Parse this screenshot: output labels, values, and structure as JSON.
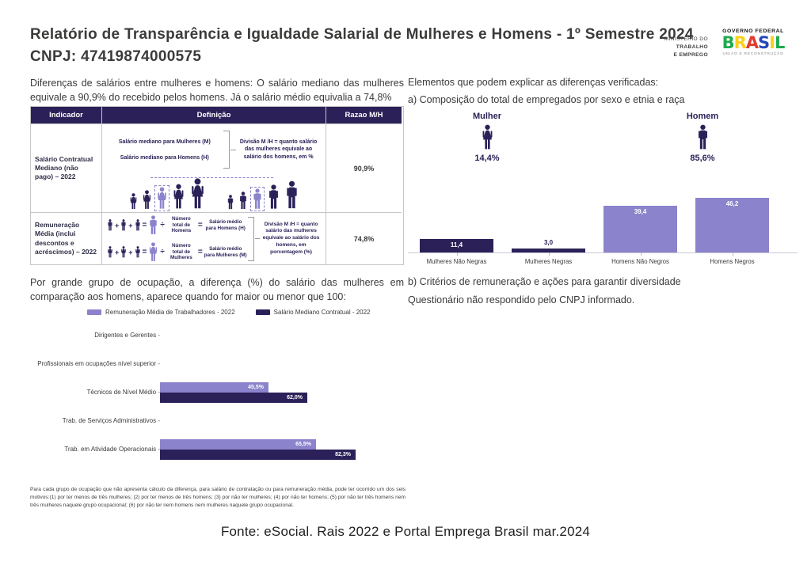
{
  "header": {
    "title": "Relatório de Transparência e Igualdade Salarial de Mulheres e Homens - 1º Semestre 2024",
    "cnpj": "CNPJ: 47419874000575",
    "ministry": {
      "line1": "MINISTÉRIO DO",
      "line2": "TRABALHO",
      "line3": "E EMPREGO"
    },
    "gov": {
      "top": "GOVERNO FEDERAL",
      "brand": "BRASIL",
      "brand_colors": [
        "#1faa4d",
        "#fcd116",
        "#e23b2e",
        "#2747b8",
        "#fcd116",
        "#1faa4d"
      ],
      "bottom": "UNIÃO E RECONSTRUÇÃO"
    }
  },
  "colors": {
    "dark": "#2b2158",
    "light": "#8b83cb"
  },
  "symbols": {
    "plus": "+",
    "equals": "=",
    "divide": "÷"
  },
  "left": {
    "intro": "Diferenças de salários entre mulheres e homens: O salário mediano das mulheres equivale a 90,9% do recebido pelos homens. Já o salário médio equivalia a 74,8%",
    "table": {
      "headers": [
        "Indicador",
        "Definição",
        "Razao M/H"
      ],
      "rows": [
        {
          "indicator": "Salário Contratual Mediano (não pago) – 2022",
          "def_line1": "Salário mediano para Mulheres (M)",
          "def_line2": "Salário mediano para Homens (H)",
          "def_note": "Divisão M /H = quanto salário das mulheres equivale ao salário dos homens, em %",
          "ratio": "90,9%"
        },
        {
          "indicator": "Remuneração Média (inclui descontos e acréscimos) – 2022",
          "eq1_count_label": "Número total de Homens",
          "eq1_result_label": "Salário médio para Homens (H)",
          "eq2_count_label": "Número total de Mulheres",
          "eq2_result_label": "Salário médio para Mulheres (M)",
          "def_note": "Divisão M /H = quanto salário das mulheres equivale ao salário dos homens, em porcentagem (%)",
          "ratio": "74,8%"
        }
      ]
    },
    "occupation_intro": "Por grande grupo de ocupação, a diferença (%) do salário das mulheres em comparação aos homens, aparece quando for maior ou menor que 100:",
    "footnote": "Para cada grupo de ocupação que não apresenta cálculo da diferença, para salário de contratação ou para remuneração média, pode ter ocorrido um dos seis motivos:(1) por ter menos de três mulheres; (2) por ter menos de três homens; (3) por não ter mulheres; (4) por não ter homens; (5) por não ter três homens nem três mulheres naquele grupo ocupacional; (6) por não ter nem homens nem mulheres naquele grupo ocupacional."
  },
  "right": {
    "heading": "Elementos que podem explicar as diferenças verificadas:",
    "sub_a": "a) Composição do total de empregados por sexo e etnia e raça",
    "mulher_label": "Mulher",
    "mulher_pct": "14,4%",
    "homem_label": "Homem",
    "homem_pct": "85,6%",
    "sub_b": "b) Critérios de remuneração e ações para garantir diversidade",
    "sub_b_note": "Questionário não respondido pelo CNPJ informado."
  },
  "footer": {
    "source": "Fonte: eSocial. Rais 2022 e Portal Emprega Brasil mar.2024"
  },
  "chart_data": [
    {
      "type": "bar",
      "orientation": "horizontal",
      "title": "Diferença (%) do salário das mulheres em comparação aos homens, por grande grupo de ocupação",
      "categories": [
        "Dirigentes e Gerentes",
        "Profissionais em ocupações nível superior",
        "Técnicos de Nível Médio",
        "Trab. de Serviços Administrativos",
        "Trab. em Atividade Operacionais"
      ],
      "series": [
        {
          "name": "Remuneração Média de Trabalhadores - 2022",
          "color": "#8b83cb",
          "values": [
            null,
            null,
            45.5,
            null,
            65.5
          ],
          "labels": [
            "",
            "",
            "45,5%",
            "",
            "65,5%"
          ]
        },
        {
          "name": "Salário Mediano Contratual - 2022",
          "color": "#2b2158",
          "values": [
            null,
            null,
            62.0,
            null,
            82.3
          ],
          "labels": [
            "",
            "",
            "62,0%",
            "",
            "82,3%"
          ]
        }
      ],
      "xlim": [
        0,
        100
      ],
      "legend_position": "top",
      "grid": false
    },
    {
      "type": "bar",
      "orientation": "vertical",
      "title": "Composição do total de empregados por sexo e etnia e raça",
      "categories": [
        "Mulheres Não Negras",
        "Mulheres Negras",
        "Homens Não Negros",
        "Homens Negros"
      ],
      "values": [
        11.4,
        3.0,
        39.4,
        46.2
      ],
      "labels": [
        "11,4",
        "3,0",
        "39,4",
        "46,2"
      ],
      "bar_colors": [
        "#2b2158",
        "#2b2158",
        "#8b83cb",
        "#8b83cb"
      ],
      "ylim": [
        0,
        50
      ],
      "grid": false
    }
  ]
}
